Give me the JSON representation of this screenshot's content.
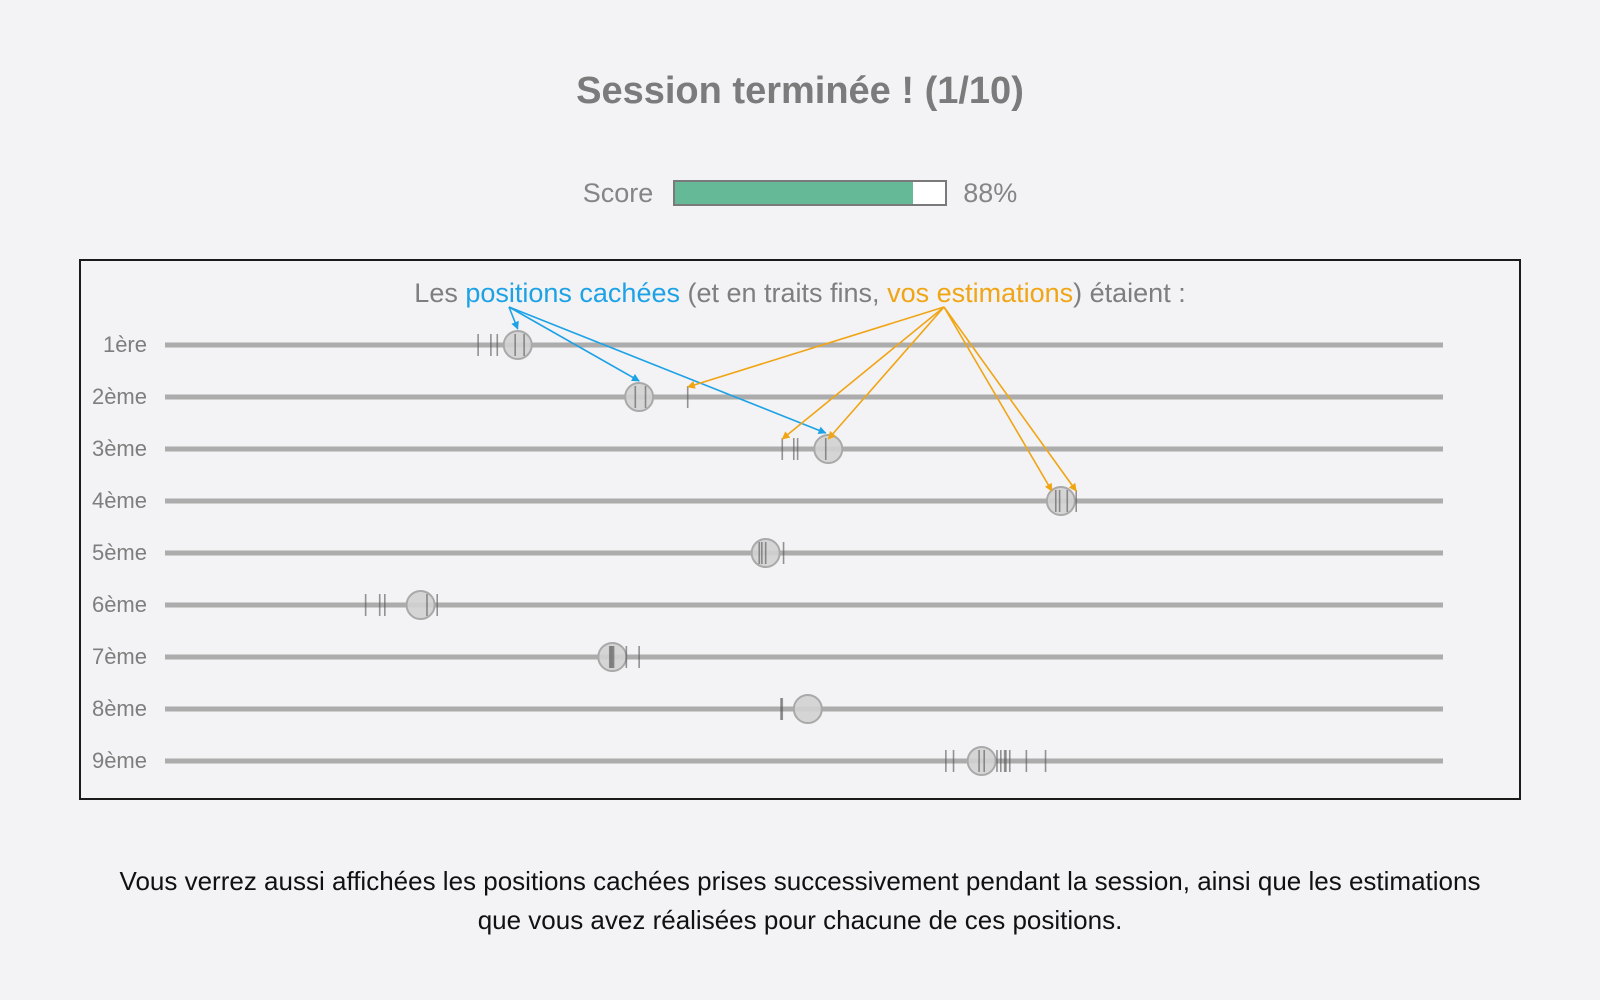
{
  "page": {
    "title": "Session terminée ! (1/10)"
  },
  "score": {
    "label": "Score",
    "value_text": "88%",
    "fraction": 0.88
  },
  "panel": {
    "caption": {
      "prefix": "Les ",
      "hidden_positions": "positions cachées",
      "middle": " (et en traits fins, ",
      "estimates": "vos estimations",
      "suffix": ") étaient :"
    },
    "rows": [
      {
        "label": "1ère",
        "hidden": 0.276,
        "estimates": [
          0.245,
          0.255,
          0.26,
          0.274,
          0.281
        ]
      },
      {
        "label": "2ème",
        "hidden": 0.371,
        "estimates": [
          0.368,
          0.376,
          0.409
        ]
      },
      {
        "label": "3ème",
        "hidden": 0.519,
        "estimates": [
          0.483,
          0.492,
          0.495,
          0.517
        ]
      },
      {
        "label": "4ème",
        "hidden": 0.701,
        "estimates": [
          0.697,
          0.7,
          0.706,
          0.713
        ]
      },
      {
        "label": "5ème",
        "hidden": 0.47,
        "estimates": [
          0.465,
          0.467,
          0.47,
          0.484
        ]
      },
      {
        "label": "6ème",
        "hidden": 0.2,
        "estimates": [
          0.157,
          0.168,
          0.172,
          0.205,
          0.213
        ]
      },
      {
        "label": "7ème",
        "hidden": 0.35,
        "estimates": [
          0.348,
          0.349,
          0.35,
          0.351,
          0.361,
          0.371
        ]
      },
      {
        "label": "8ème",
        "hidden": 0.503,
        "estimates": [
          0.482,
          0.483
        ]
      },
      {
        "label": "9ème",
        "hidden": 0.639,
        "estimates": [
          0.611,
          0.617,
          0.637,
          0.641,
          0.651,
          0.654,
          0.657,
          0.658,
          0.661,
          0.674,
          0.689
        ]
      }
    ],
    "blue_pointer_targets": [
      {
        "row": 0,
        "position": 0.276
      },
      {
        "row": 1,
        "position": 0.371
      },
      {
        "row": 2,
        "position": 0.517
      }
    ],
    "orange_pointer_targets": [
      {
        "row": 1,
        "position": 0.409
      },
      {
        "row": 2,
        "position": 0.483
      },
      {
        "row": 2,
        "position": 0.519
      },
      {
        "row": 3,
        "position": 0.694
      },
      {
        "row": 3,
        "position": 0.713
      }
    ]
  },
  "footer": {
    "text": "Vous verrez aussi affichées les positions cachées prises successivement pendant la session, ainsi que les estimations que vous avez réalisées pour chacune de ces positions."
  },
  "colors": {
    "background": "#f3f2f4",
    "score_fill": "#65b996",
    "hidden_accent": "#1ea2e6",
    "estimate_accent": "#f0a515",
    "track": "#acacac",
    "knob": "#d2d2d2"
  }
}
